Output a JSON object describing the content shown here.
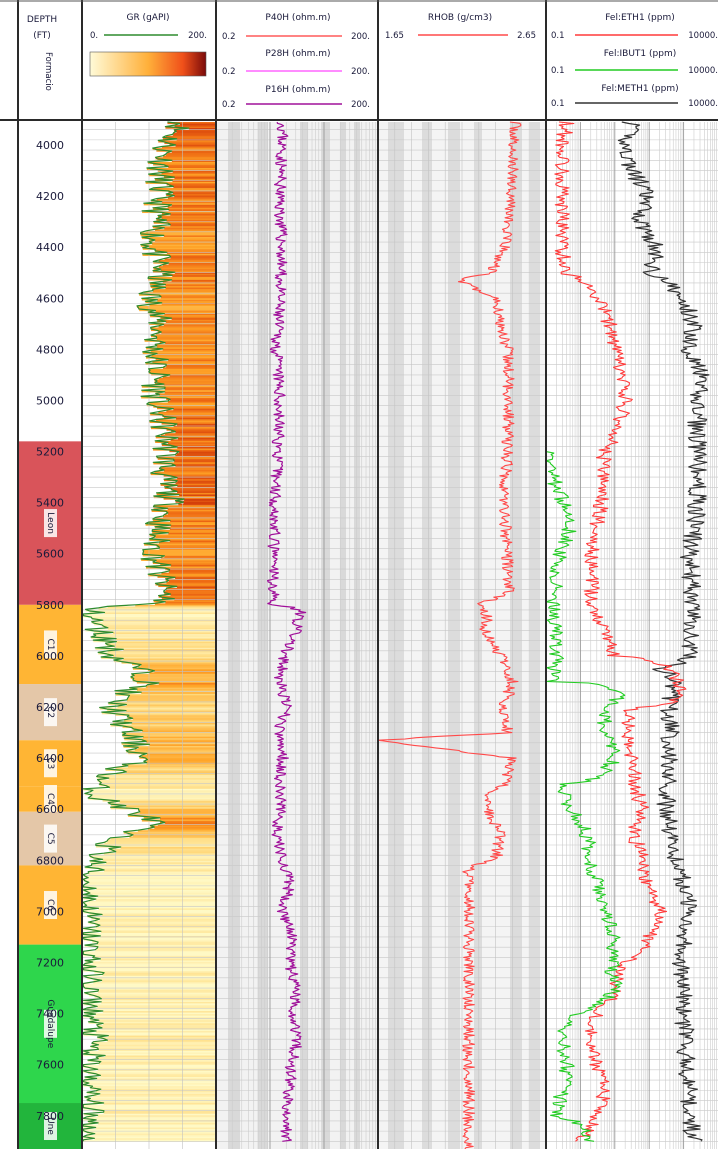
{
  "header": {
    "depth": {
      "line1": "DEPTH",
      "line2": "(FT)",
      "formation": "Formacio"
    },
    "gr": {
      "title": "GR (gAPI)",
      "min": "0.",
      "max": "200.",
      "color": "#2e8b2e"
    },
    "resistivity": [
      {
        "title": "P40H (ohm.m)",
        "min": "0.2",
        "max": "200.",
        "color": "#ff5a5a"
      },
      {
        "title": "P28H (ohm.m)",
        "min": "0.2",
        "max": "200.",
        "color": "#ff66ff"
      },
      {
        "title": "P16H (ohm.m)",
        "min": "0.2",
        "max": "200.",
        "color": "#a0109a"
      }
    ],
    "rhob": {
      "title": "RHOB (g/cm3)",
      "min": "1.65",
      "max": "2.65",
      "color": "#ff4a4a"
    },
    "gas": [
      {
        "title": "Fel:ETH1 (ppm)",
        "min": "0.1",
        "max": "10000.",
        "color": "#ff3a3a"
      },
      {
        "title": "Fel:IBUT1 (ppm)",
        "min": "0.1",
        "max": "10000.",
        "color": "#22cc22"
      },
      {
        "title": "Fel:METH1 (ppm)",
        "min": "0.1",
        "max": "10000.",
        "color": "#333333"
      }
    ]
  },
  "chart_data": {
    "type": "line",
    "depth_axis": {
      "label": "DEPTH (FT)",
      "range": [
        3910,
        7930
      ],
      "ticks": [
        "4000",
        "4200",
        "4400",
        "4600",
        "4800",
        "5000",
        "5200",
        "5400",
        "5600",
        "5800",
        "6000",
        "6200",
        "6400",
        "6600",
        "6800",
        "7000",
        "7200",
        "7400",
        "7600",
        "7800"
      ]
    },
    "formations": [
      {
        "label": "Leon",
        "top": 5160,
        "base": 5800,
        "color": "#d9545a"
      },
      {
        "label": "C1",
        "top": 5800,
        "base": 6110,
        "color": "#ffb534"
      },
      {
        "label": "C2",
        "top": 6110,
        "base": 6330,
        "color": "#e4c7a8"
      },
      {
        "label": "C3",
        "top": 6330,
        "base": 6510,
        "color": "#ffb534"
      },
      {
        "label": "C4",
        "top": 6510,
        "base": 6610,
        "color": "#ffb534"
      },
      {
        "label": "C5",
        "top": 6610,
        "base": 6820,
        "color": "#e4c7a8"
      },
      {
        "label": "C6",
        "top": 6820,
        "base": 7130,
        "color": "#ffb534"
      },
      {
        "label": "Guadalupe",
        "top": 7130,
        "base": 7750,
        "color": "#2ed64c"
      },
      {
        "label": "Une",
        "top": 7750,
        "base": 7930,
        "color": "#22b53c"
      }
    ],
    "series": [
      {
        "name": "GR",
        "units": "gAPI",
        "scale": [
          0,
          200
        ],
        "depth": [
          3910,
          4000,
          4100,
          4200,
          4300,
          4400,
          4500,
          4600,
          4700,
          4800,
          4900,
          5000,
          5100,
          5200,
          5300,
          5400,
          5500,
          5600,
          5700,
          5790,
          5810,
          5850,
          5900,
          5950,
          6000,
          6050,
          6100,
          6150,
          6200,
          6300,
          6400,
          6450,
          6500,
          6550,
          6600,
          6650,
          6700,
          6800,
          6850,
          6900,
          7000,
          7100,
          7200,
          7300,
          7400,
          7500,
          7600,
          7700,
          7800,
          7900
        ],
        "values": [
          150,
          125,
          118,
          115,
          110,
          105,
          118,
          100,
          115,
          108,
          112,
          110,
          122,
          128,
          120,
          132,
          112,
          108,
          118,
          126,
          12,
          15,
          25,
          40,
          45,
          85,
          100,
          60,
          45,
          70,
          90,
          50,
          20,
          20,
          70,
          110,
          55,
          20,
          10,
          8,
          10,
          10,
          12,
          10,
          12,
          18,
          10,
          10,
          12,
          10
        ]
      },
      {
        "name": "P16H",
        "units": "ohm.m",
        "scale": [
          0.2,
          200
        ],
        "log": true,
        "depth": [
          3910,
          4200,
          4400,
          4600,
          4800,
          5000,
          5200,
          5400,
          5600,
          5800,
          5820,
          5900,
          6000,
          6100,
          6200,
          6300,
          6400,
          6500,
          6600,
          6700,
          6800,
          6900,
          7000,
          7100,
          7200,
          7300,
          7400,
          7500,
          7600,
          7700,
          7800,
          7900
        ],
        "values": [
          3.5,
          3.0,
          3.3,
          3.0,
          2.6,
          3.0,
          2.8,
          2.5,
          2.3,
          2.3,
          7.5,
          6,
          3.5,
          3.0,
          4.0,
          2.8,
          3.5,
          3.0,
          3.2,
          2.5,
          3.5,
          4.5,
          3.5,
          5.0,
          4.5,
          6.0,
          5.5,
          6.5,
          5.0,
          4.5,
          3.8,
          4.0
        ]
      },
      {
        "name": "RHOB",
        "units": "g/cm3",
        "scale": [
          1.65,
          2.65
        ],
        "depth": [
          3910,
          4000,
          4200,
          4400,
          4500,
          4530,
          4600,
          4800,
          5000,
          5200,
          5400,
          5600,
          5750,
          5800,
          5850,
          5900,
          6000,
          6100,
          6200,
          6300,
          6330,
          6400,
          6500,
          6550,
          6600,
          6700,
          6800,
          6820,
          6900,
          7100,
          7300,
          7500,
          7700,
          7930
        ],
        "values": [
          2.47,
          2.45,
          2.45,
          2.4,
          2.32,
          2.13,
          2.35,
          2.42,
          2.43,
          2.42,
          2.4,
          2.42,
          2.43,
          2.25,
          2.3,
          2.28,
          2.38,
          2.45,
          2.4,
          2.42,
          1.65,
          2.45,
          2.4,
          2.3,
          2.3,
          2.38,
          2.35,
          2.19,
          2.19,
          2.19,
          2.19,
          2.19,
          2.19,
          2.19
        ]
      },
      {
        "name": "ETH1",
        "units": "ppm",
        "scale": [
          0.1,
          10000
        ],
        "log": true,
        "depth": [
          3910,
          4000,
          4200,
          4400,
          4500,
          4600,
          4700,
          4800,
          5000,
          5200,
          5400,
          5500,
          5600,
          5700,
          5800,
          5900,
          6000,
          6150,
          6200,
          6300,
          6400,
          6500,
          6600,
          6700,
          6800,
          6900,
          7000,
          7100,
          7200,
          7300,
          7400,
          7500,
          7600,
          7700,
          7800,
          7900
        ],
        "values": [
          0.4,
          0.3,
          0.3,
          0.3,
          0.35,
          3,
          7,
          10,
          20,
          5,
          4,
          3,
          2,
          2.2,
          2,
          5,
          10,
          1000,
          30,
          20,
          30,
          40,
          60,
          30,
          70,
          80,
          200,
          100,
          20,
          10,
          3,
          2,
          3,
          5,
          3,
          1
        ]
      },
      {
        "name": "IBUT1",
        "units": "ppm",
        "scale": [
          0.1,
          10000
        ],
        "log": true,
        "depth": [
          5200,
          5300,
          5400,
          5500,
          5600,
          5700,
          5800,
          5900,
          6000,
          6100,
          6150,
          6200,
          6300,
          6400,
          6500,
          6600,
          6700,
          6800,
          6900,
          7000,
          7100,
          7200,
          7300,
          7400,
          7500,
          7600,
          7700,
          7800,
          7900
        ],
        "values": [
          0.12,
          0.15,
          0.3,
          0.5,
          0.25,
          0.2,
          0.15,
          0.2,
          0.2,
          0.15,
          15,
          5,
          5,
          10,
          0.3,
          0.5,
          1.5,
          2,
          3,
          5,
          10,
          8,
          10,
          0.5,
          0.3,
          0.4,
          0.3,
          0.2,
          2
        ]
      },
      {
        "name": "METH1",
        "units": "ppm",
        "scale": [
          0.1,
          10000
        ],
        "log": true,
        "depth": [
          3910,
          4000,
          4100,
          4200,
          4300,
          4400,
          4500,
          4600,
          4700,
          4800,
          4900,
          5000,
          5200,
          5400,
          5600,
          5800,
          6000,
          6050,
          6100,
          6200,
          6400,
          6600,
          6800,
          7000,
          7200,
          7400,
          7600,
          7800,
          7900
        ],
        "values": [
          30,
          20,
          30,
          80,
          50,
          150,
          120,
          700,
          2000,
          1500,
          3000,
          2500,
          2500,
          2500,
          1500,
          1800,
          1500,
          200,
          500,
          400,
          400,
          300,
          600,
          1500,
          800,
          1000,
          1200,
          1500,
          2000
        ]
      }
    ]
  }
}
